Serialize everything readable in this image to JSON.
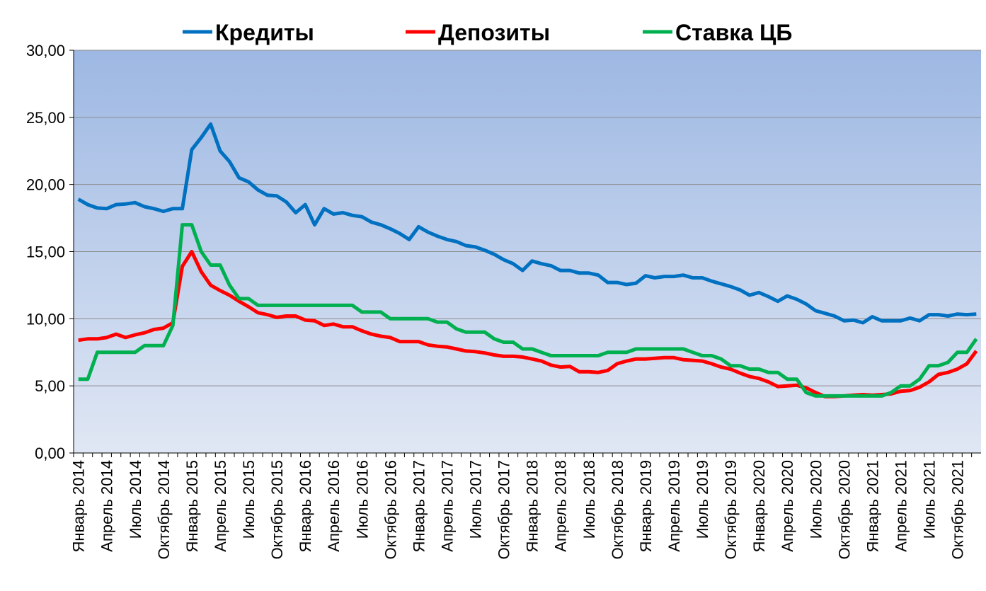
{
  "chart_data": {
    "type": "line",
    "categories": [
      "Январь 2014",
      null,
      null,
      "Апрель 2014",
      null,
      null,
      "Июль 2014",
      null,
      null,
      "Октябрь 2014",
      null,
      null,
      "Январь 2015",
      null,
      null,
      "Апрель 2015",
      null,
      null,
      "Июль 2015",
      null,
      null,
      "Октябрь 2015",
      null,
      null,
      "Январь 2016",
      null,
      null,
      "Апрель 2016",
      null,
      null,
      "Июль 2016",
      null,
      null,
      "Октябрь 2016",
      null,
      null,
      "Январь 2017",
      null,
      null,
      "Апрель 2017",
      null,
      null,
      "Июль 2017",
      null,
      null,
      "Октябрь 2017",
      null,
      null,
      "Январь 2018",
      null,
      null,
      "Апрель 2018",
      null,
      null,
      "Июль 2018",
      null,
      null,
      "Октябрь 2018",
      null,
      null,
      "Январь 2019",
      null,
      null,
      "Апрель 2019",
      null,
      null,
      "Июль 2019",
      null,
      null,
      "Октябрь 2019",
      null,
      null,
      "Январь 2020",
      null,
      null,
      "Апрель 2020",
      null,
      null,
      "Июль 2020",
      null,
      null,
      "Октябрь 2020",
      null,
      null,
      "Январь 2021",
      null,
      null,
      "Апрель 2021",
      null,
      null,
      "Июль 2021",
      null,
      null,
      "Октябрь 2021",
      null,
      null
    ],
    "series": [
      {
        "name": "Кредиты",
        "color": "#0070c0",
        "values": [
          18.9,
          18.5,
          18.25,
          18.2,
          18.5,
          18.55,
          18.65,
          18.35,
          18.2,
          18.0,
          18.2,
          18.2,
          22.6,
          23.5,
          24.5,
          22.5,
          21.7,
          20.5,
          20.2,
          19.6,
          19.2,
          19.15,
          18.7,
          17.9,
          18.5,
          17.0,
          18.2,
          17.8,
          17.9,
          17.7,
          17.6,
          17.2,
          17.0,
          16.7,
          16.35,
          15.9,
          16.85,
          16.45,
          16.15,
          15.9,
          15.75,
          15.45,
          15.35,
          15.1,
          14.8,
          14.4,
          14.1,
          13.6,
          14.3,
          14.1,
          13.95,
          13.6,
          13.6,
          13.4,
          13.4,
          13.25,
          12.7,
          12.7,
          12.55,
          12.65,
          13.2,
          13.05,
          13.15,
          13.15,
          13.25,
          13.05,
          13.05,
          12.8,
          12.6,
          12.4,
          12.15,
          11.75,
          11.95,
          11.65,
          11.3,
          11.7,
          11.45,
          11.1,
          10.6,
          10.4,
          10.2,
          9.85,
          9.9,
          9.7,
          10.15,
          9.85,
          9.85,
          9.85,
          10.05,
          9.85,
          10.3,
          10.3,
          10.2,
          10.35,
          10.3,
          10.35
        ]
      },
      {
        "name": "Депозиты",
        "color": "#ff0000",
        "values": [
          8.4,
          8.5,
          8.5,
          8.6,
          8.85,
          8.6,
          8.8,
          8.95,
          9.2,
          9.3,
          9.7,
          13.9,
          15.0,
          13.5,
          12.5,
          12.1,
          11.75,
          11.3,
          10.9,
          10.45,
          10.3,
          10.1,
          10.2,
          10.2,
          9.9,
          9.85,
          9.5,
          9.6,
          9.4,
          9.4,
          9.1,
          8.85,
          8.7,
          8.6,
          8.3,
          8.3,
          8.3,
          8.05,
          7.95,
          7.9,
          7.75,
          7.6,
          7.55,
          7.45,
          7.3,
          7.2,
          7.2,
          7.15,
          7.0,
          6.85,
          6.55,
          6.4,
          6.45,
          6.05,
          6.05,
          6.0,
          6.15,
          6.65,
          6.85,
          7.0,
          7.0,
          7.05,
          7.1,
          7.1,
          6.95,
          6.9,
          6.85,
          6.65,
          6.4,
          6.25,
          5.95,
          5.7,
          5.55,
          5.3,
          4.95,
          5.0,
          5.05,
          4.85,
          4.5,
          4.2,
          4.2,
          4.25,
          4.3,
          4.35,
          4.3,
          4.35,
          4.4,
          4.6,
          4.65,
          4.9,
          5.3,
          5.85,
          6.0,
          6.25,
          6.65,
          7.6
        ]
      },
      {
        "name": "Ставка ЦБ",
        "color": "#00b050",
        "values": [
          5.5,
          5.5,
          7.5,
          7.5,
          7.5,
          7.5,
          7.5,
          8.0,
          8.0,
          8.0,
          9.5,
          17,
          17,
          15,
          14,
          14,
          12.5,
          11.5,
          11.5,
          11,
          11,
          11,
          11,
          11,
          11,
          11,
          11,
          11,
          11,
          11,
          10.5,
          10.5,
          10.5,
          10,
          10,
          10,
          10,
          10,
          9.75,
          9.75,
          9.25,
          9,
          9,
          9,
          8.5,
          8.25,
          8.25,
          7.75,
          7.75,
          7.5,
          7.25,
          7.25,
          7.25,
          7.25,
          7.25,
          7.25,
          7.5,
          7.5,
          7.5,
          7.75,
          7.75,
          7.75,
          7.75,
          7.75,
          7.75,
          7.5,
          7.25,
          7.25,
          7.0,
          6.5,
          6.5,
          6.25,
          6.25,
          6.0,
          6.0,
          5.5,
          5.5,
          4.5,
          4.25,
          4.25,
          4.25,
          4.25,
          4.25,
          4.25,
          4.25,
          4.25,
          4.5,
          5.0,
          5.0,
          5.5,
          6.5,
          6.5,
          6.75,
          7.5,
          7.5,
          8.5
        ]
      }
    ],
    "ylim": [
      0,
      30
    ],
    "yticks": [
      {
        "value": 0,
        "label": "0,00"
      },
      {
        "value": 5,
        "label": "5,00"
      },
      {
        "value": 10,
        "label": "10,00"
      },
      {
        "value": 15,
        "label": "15,00"
      },
      {
        "value": 20,
        "label": "20,00"
      },
      {
        "value": 25,
        "label": "25,00"
      },
      {
        "value": 30,
        "label": "30,00"
      }
    ],
    "grid": true,
    "legend": "top"
  }
}
